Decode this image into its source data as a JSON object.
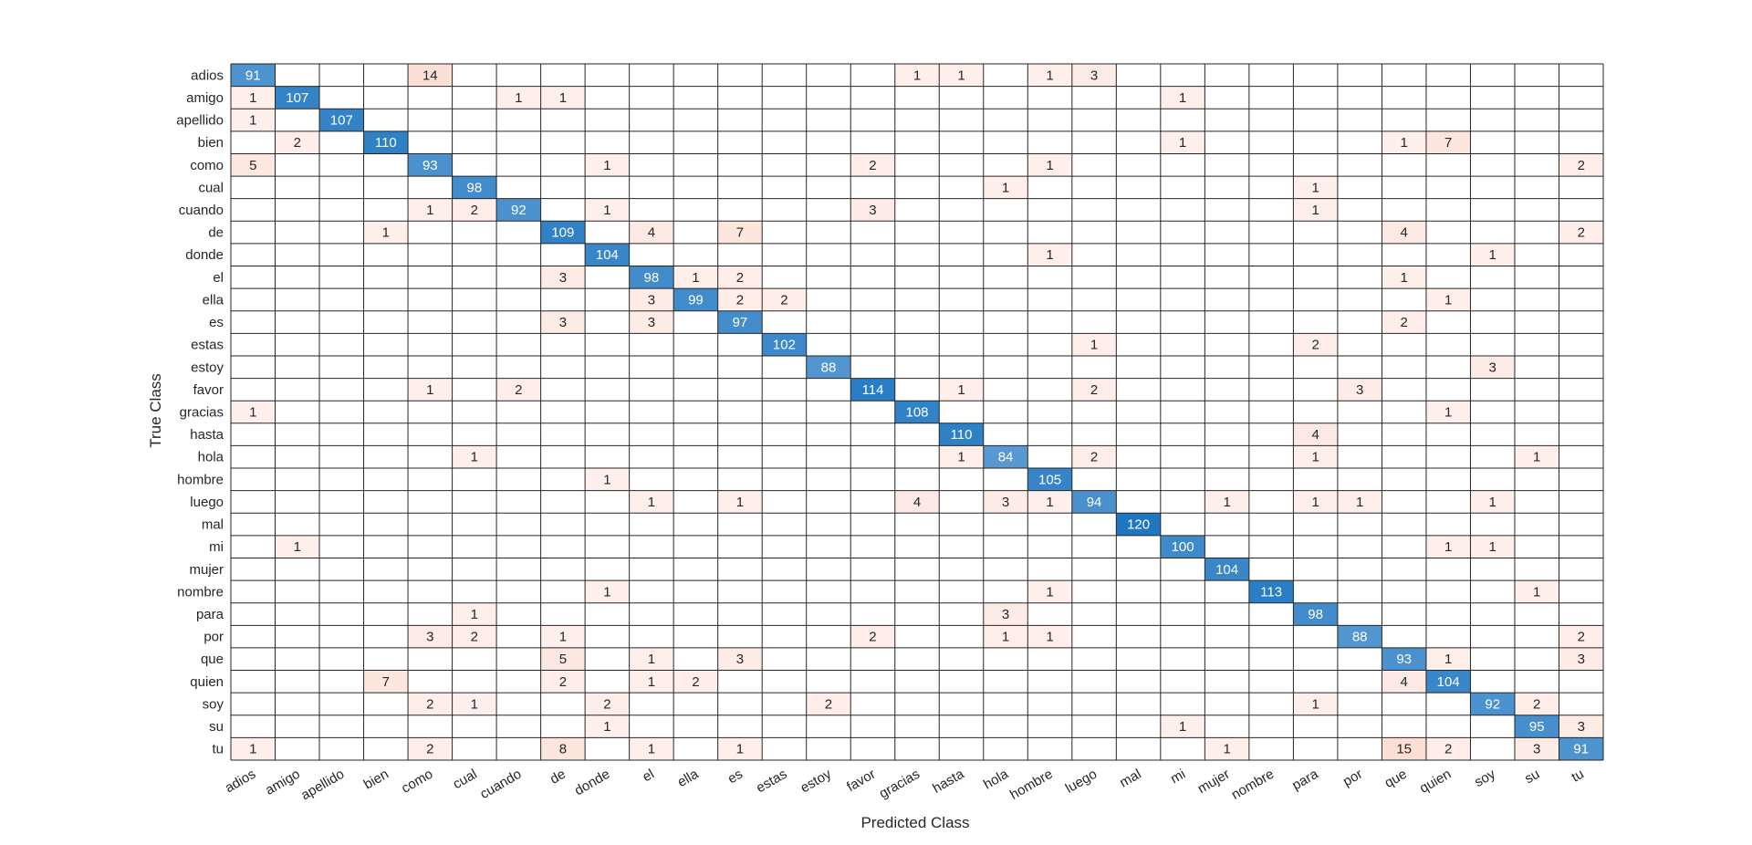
{
  "chart_data": {
    "type": "heatmap",
    "title": "",
    "xlabel": "Predicted Class",
    "ylabel": "True Class",
    "classes": [
      "adios",
      "amigo",
      "apellido",
      "bien",
      "como",
      "cual",
      "cuando",
      "de",
      "donde",
      "el",
      "ella",
      "es",
      "estas",
      "estoy",
      "favor",
      "gracias",
      "hasta",
      "hola",
      "hombre",
      "luego",
      "mal",
      "mi",
      "mujer",
      "nombre",
      "para",
      "por",
      "que",
      "quien",
      "soy",
      "su",
      "tu"
    ],
    "cells": [
      [
        0,
        0,
        91
      ],
      [
        0,
        4,
        14
      ],
      [
        0,
        15,
        1
      ],
      [
        0,
        16,
        1
      ],
      [
        0,
        18,
        1
      ],
      [
        0,
        19,
        3
      ],
      [
        1,
        0,
        1
      ],
      [
        1,
        1,
        107
      ],
      [
        1,
        6,
        1
      ],
      [
        1,
        7,
        1
      ],
      [
        1,
        21,
        1
      ],
      [
        2,
        0,
        1
      ],
      [
        2,
        2,
        107
      ],
      [
        3,
        1,
        2
      ],
      [
        3,
        3,
        110
      ],
      [
        3,
        21,
        1
      ],
      [
        3,
        26,
        1
      ],
      [
        3,
        27,
        7
      ],
      [
        4,
        0,
        5
      ],
      [
        4,
        4,
        93
      ],
      [
        4,
        8,
        1
      ],
      [
        4,
        14,
        2
      ],
      [
        4,
        18,
        1
      ],
      [
        4,
        30,
        2
      ],
      [
        5,
        5,
        98
      ],
      [
        5,
        17,
        1
      ],
      [
        5,
        24,
        1
      ],
      [
        6,
        4,
        1
      ],
      [
        6,
        5,
        2
      ],
      [
        6,
        6,
        92
      ],
      [
        6,
        8,
        1
      ],
      [
        6,
        14,
        3
      ],
      [
        6,
        24,
        1
      ],
      [
        7,
        3,
        1
      ],
      [
        7,
        7,
        109
      ],
      [
        7,
        9,
        4
      ],
      [
        7,
        11,
        7
      ],
      [
        7,
        26,
        4
      ],
      [
        7,
        30,
        2
      ],
      [
        8,
        8,
        104
      ],
      [
        8,
        18,
        1
      ],
      [
        8,
        28,
        1
      ],
      [
        9,
        7,
        3
      ],
      [
        9,
        9,
        98
      ],
      [
        9,
        10,
        1
      ],
      [
        9,
        11,
        2
      ],
      [
        9,
        26,
        1
      ],
      [
        10,
        9,
        3
      ],
      [
        10,
        10,
        99
      ],
      [
        10,
        11,
        2
      ],
      [
        10,
        12,
        2
      ],
      [
        10,
        27,
        1
      ],
      [
        11,
        7,
        3
      ],
      [
        11,
        9,
        3
      ],
      [
        11,
        11,
        97
      ],
      [
        11,
        26,
        2
      ],
      [
        12,
        12,
        102
      ],
      [
        12,
        19,
        1
      ],
      [
        12,
        24,
        2
      ],
      [
        13,
        13,
        88
      ],
      [
        13,
        28,
        3
      ],
      [
        14,
        4,
        1
      ],
      [
        14,
        6,
        2
      ],
      [
        14,
        14,
        114
      ],
      [
        14,
        16,
        1
      ],
      [
        14,
        19,
        2
      ],
      [
        14,
        25,
        3
      ],
      [
        15,
        0,
        1
      ],
      [
        15,
        15,
        108
      ],
      [
        15,
        27,
        1
      ],
      [
        16,
        16,
        110
      ],
      [
        16,
        24,
        4
      ],
      [
        17,
        5,
        1
      ],
      [
        17,
        16,
        1
      ],
      [
        17,
        17,
        84
      ],
      [
        17,
        19,
        2
      ],
      [
        17,
        24,
        1
      ],
      [
        17,
        29,
        1
      ],
      [
        18,
        8,
        1
      ],
      [
        18,
        18,
        105
      ],
      [
        19,
        9,
        1
      ],
      [
        19,
        11,
        1
      ],
      [
        19,
        15,
        4
      ],
      [
        19,
        17,
        3
      ],
      [
        19,
        18,
        1
      ],
      [
        19,
        19,
        94
      ],
      [
        19,
        22,
        1
      ],
      [
        19,
        24,
        1
      ],
      [
        19,
        25,
        1
      ],
      [
        19,
        28,
        1
      ],
      [
        20,
        20,
        120
      ],
      [
        21,
        1,
        1
      ],
      [
        21,
        21,
        100
      ],
      [
        21,
        27,
        1
      ],
      [
        21,
        28,
        1
      ],
      [
        22,
        22,
        104
      ],
      [
        23,
        8,
        1
      ],
      [
        23,
        18,
        1
      ],
      [
        23,
        23,
        113
      ],
      [
        23,
        29,
        1
      ],
      [
        24,
        5,
        1
      ],
      [
        24,
        17,
        3
      ],
      [
        24,
        24,
        98
      ],
      [
        25,
        4,
        3
      ],
      [
        25,
        5,
        2
      ],
      [
        25,
        7,
        1
      ],
      [
        25,
        14,
        2
      ],
      [
        25,
        17,
        1
      ],
      [
        25,
        18,
        1
      ],
      [
        25,
        25,
        88
      ],
      [
        25,
        30,
        2
      ],
      [
        26,
        7,
        5
      ],
      [
        26,
        9,
        1
      ],
      [
        26,
        11,
        3
      ],
      [
        26,
        26,
        93
      ],
      [
        26,
        27,
        1
      ],
      [
        26,
        30,
        3
      ],
      [
        27,
        3,
        7
      ],
      [
        27,
        7,
        2
      ],
      [
        27,
        9,
        1
      ],
      [
        27,
        10,
        2
      ],
      [
        27,
        26,
        4
      ],
      [
        27,
        27,
        104
      ],
      [
        28,
        4,
        2
      ],
      [
        28,
        5,
        1
      ],
      [
        28,
        8,
        2
      ],
      [
        28,
        13,
        2
      ],
      [
        28,
        24,
        1
      ],
      [
        28,
        28,
        92
      ],
      [
        28,
        29,
        2
      ],
      [
        29,
        8,
        1
      ],
      [
        29,
        21,
        1
      ],
      [
        29,
        29,
        95
      ],
      [
        29,
        30,
        3
      ],
      [
        30,
        0,
        1
      ],
      [
        30,
        4,
        2
      ],
      [
        30,
        7,
        8
      ],
      [
        30,
        9,
        1
      ],
      [
        30,
        11,
        1
      ],
      [
        30,
        22,
        1
      ],
      [
        30,
        26,
        15
      ],
      [
        30,
        27,
        2
      ],
      [
        30,
        29,
        3
      ],
      [
        30,
        30,
        91
      ]
    ],
    "diagonal_color_light": "#dfe9f4",
    "diagonal_color_dark": "#1f77c2",
    "offdiag_color_light": "#fff5f3",
    "offdiag_color_dark": "#f8c8b5",
    "grid": true,
    "legend": "none"
  }
}
